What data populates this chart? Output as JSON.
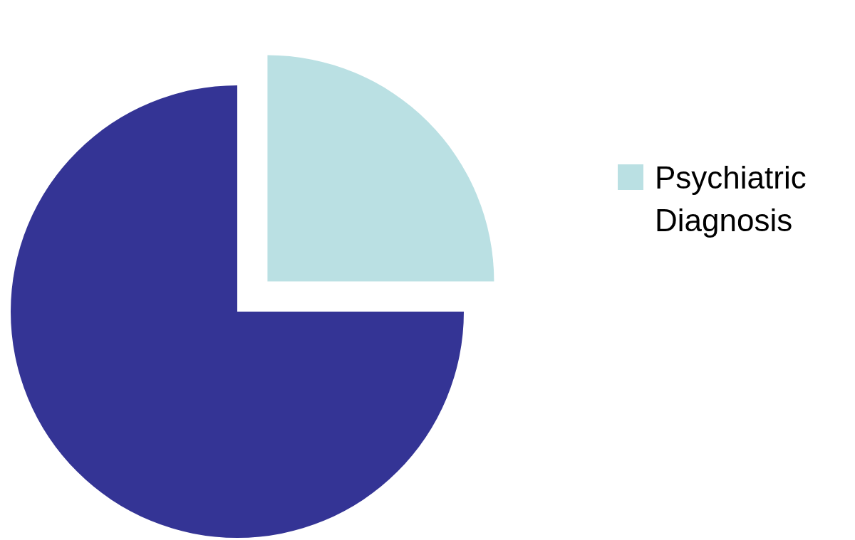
{
  "chart_data": {
    "type": "pie",
    "categories": [
      "Psychiatric Diagnosis",
      null
    ],
    "values": [
      25,
      75
    ],
    "colors": [
      "#bae0e3",
      "#343495"
    ],
    "legend": "right"
  }
}
